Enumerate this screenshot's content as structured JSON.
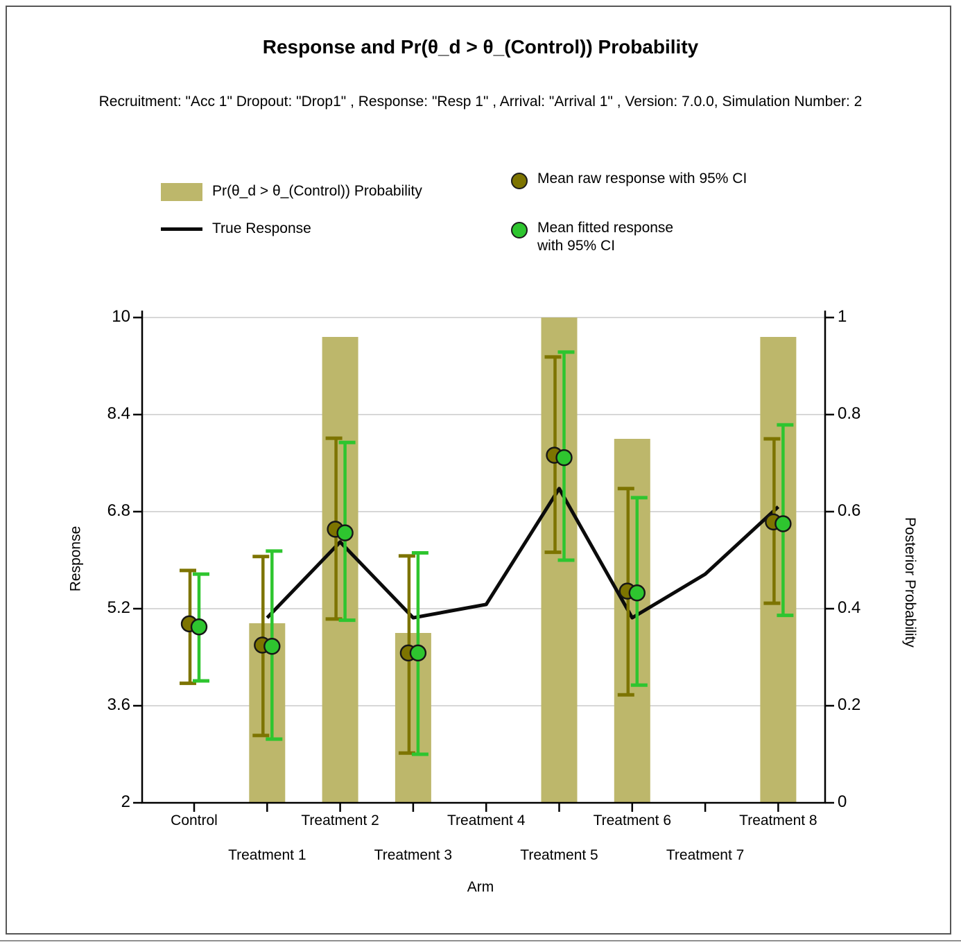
{
  "page": {
    "title": "Response and Pr(θ_d > θ_(Control)) Probability",
    "subtitle": "Recruitment: \"Acc 1\" Dropout: \"Drop1\" , Response: \"Resp 1\" , Arrival: \"Arrival 1\" , Version: 7.0.0, Simulation Number: 2"
  },
  "legend": {
    "prob_label": "Pr(θ_d > θ_(Control)) Probability",
    "true_label": "True Response",
    "raw_label": "Mean raw response with 95% CI",
    "fitted_label": "Mean fitted response\nwith 95% CI"
  },
  "chart_data": {
    "type": "bar",
    "title": "Response and Pr(θ_d > θ_(Control)) Probability",
    "categories": [
      "Control",
      "Treatment 1",
      "Treatment 2",
      "Treatment 3",
      "Treatment 4",
      "Treatment 5",
      "Treatment 6",
      "Treatment 7",
      "Treatment 8"
    ],
    "xlabel": "Arm",
    "left_axis": {
      "label": "Response",
      "range": [
        2,
        10
      ],
      "ticks": [
        10,
        8.4,
        6.8,
        5.2,
        3.6,
        2
      ]
    },
    "right_axis": {
      "label": "Posterior Probability",
      "range": [
        0,
        1
      ],
      "ticks": [
        1,
        0.8,
        0.6,
        0.4,
        0.2,
        0
      ]
    },
    "grid": "horizontal, light gray",
    "legend_position": "top",
    "series": [
      {
        "name": "Pr(θ_d > θ_(Control)) Probability",
        "type": "bar",
        "axis": "right",
        "color": "#BDB76B",
        "values": [
          null,
          0.37,
          0.96,
          0.35,
          null,
          1.0,
          0.75,
          null,
          0.96
        ]
      },
      {
        "name": "True Response",
        "type": "line",
        "axis": "left",
        "color": "#0b0b0b",
        "values": [
          null,
          5.05,
          6.3,
          5.05,
          5.27,
          7.18,
          5.05,
          5.77,
          6.88
        ]
      },
      {
        "name": "Mean raw response with 95% CI",
        "type": "scatter_ci",
        "axis": "left",
        "color": "#7D7400",
        "means": [
          4.95,
          4.6,
          6.51,
          4.47,
          null,
          7.73,
          5.49,
          null,
          6.63
        ],
        "ci_low": [
          3.97,
          3.11,
          5.03,
          2.82,
          null,
          6.13,
          3.78,
          null,
          5.29
        ],
        "ci_high": [
          5.83,
          6.06,
          8.01,
          6.07,
          null,
          9.35,
          7.18,
          null,
          8.0
        ]
      },
      {
        "name": "Mean fitted response with 95% CI",
        "type": "scatter_ci",
        "axis": "left",
        "color": "#2EC52F",
        "means": [
          4.9,
          4.58,
          6.45,
          4.47,
          null,
          7.69,
          5.46,
          null,
          6.6
        ],
        "ci_low": [
          4.01,
          3.05,
          5.01,
          2.8,
          null,
          6.0,
          3.94,
          null,
          5.09
        ],
        "ci_high": [
          5.77,
          6.15,
          7.94,
          6.12,
          null,
          9.43,
          7.03,
          null,
          8.23
        ]
      }
    ],
    "grid_color": "#d7d7d7",
    "axis_color": "#000000"
  }
}
